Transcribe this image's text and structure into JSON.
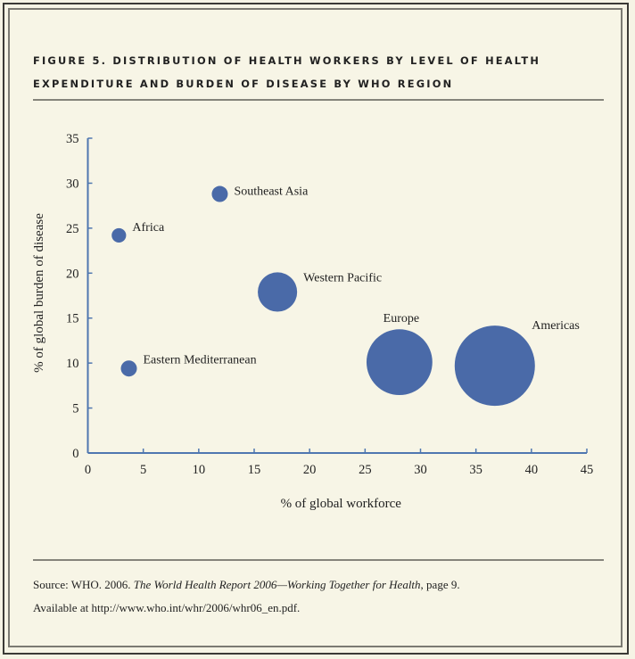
{
  "figure": {
    "title_line1": "FIGURE 5. DISTRIBUTION OF HEALTH WORKERS BY LEVEL OF HEALTH",
    "title_line2": "EXPENDITURE AND BURDEN OF DISEASE BY WHO REGION"
  },
  "source": {
    "prefix": "Source: WHO. 2006. ",
    "title_italic": "The World Health Report 2006—Working Together for Health",
    "suffix": ", page 9.",
    "availability": "Available at http://www.who.int/whr/2006/whr06_en.pdf."
  },
  "colors": {
    "bubble": "#4a6aa8",
    "axis": "#4f77b0",
    "background": "#f6f4e5"
  },
  "chart_data": {
    "type": "scatter",
    "subtype": "bubble",
    "title": "Distribution of Health Workers by Level of Health Expenditure and Burden of Disease by WHO Region",
    "xlabel": "% of global workforce",
    "ylabel": "% of global burden of disease",
    "xlim": [
      0,
      45
    ],
    "ylim": [
      0,
      35
    ],
    "xticks": [
      0,
      5,
      10,
      15,
      20,
      25,
      30,
      35,
      40,
      45
    ],
    "yticks": [
      0,
      5,
      10,
      15,
      20,
      25,
      30,
      35
    ],
    "grid": false,
    "legend": "none",
    "size_note": "bubble area reflects level of health expenditure (relative, unlabeled)",
    "points": [
      {
        "label": "Africa",
        "x": 2.8,
        "y": 24.2,
        "size": 0.18,
        "label_pos": "right-up"
      },
      {
        "label": "Southeast Asia",
        "x": 11.9,
        "y": 28.8,
        "size": 0.2,
        "label_pos": "right"
      },
      {
        "label": "Western Pacific",
        "x": 17.1,
        "y": 17.9,
        "size": 0.49,
        "label_pos": "right-up"
      },
      {
        "label": "Eastern Mediterranean",
        "x": 3.7,
        "y": 9.4,
        "size": 0.2,
        "label_pos": "right-up"
      },
      {
        "label": "Europe",
        "x": 28.1,
        "y": 10.1,
        "size": 0.82,
        "label_pos": "top"
      },
      {
        "label": "Americas",
        "x": 36.7,
        "y": 9.7,
        "size": 1.0,
        "label_pos": "top-right"
      }
    ]
  }
}
